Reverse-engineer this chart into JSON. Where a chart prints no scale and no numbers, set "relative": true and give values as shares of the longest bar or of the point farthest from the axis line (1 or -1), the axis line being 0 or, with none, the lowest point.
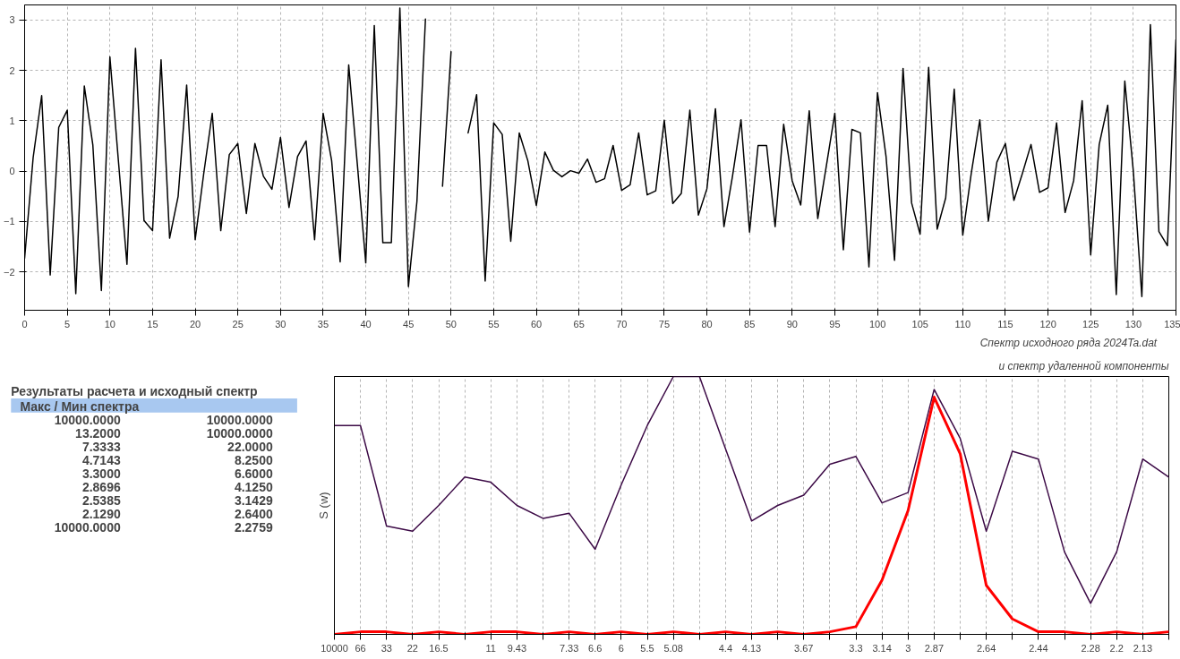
{
  "chart_data": [
    {
      "type": "line",
      "x": [
        0,
        1,
        2,
        3,
        4,
        5,
        6,
        7,
        8,
        9,
        10,
        11,
        12,
        13,
        14,
        15,
        16,
        17,
        18,
        19,
        20,
        21,
        22,
        23,
        24,
        25,
        26,
        27,
        28,
        29,
        30,
        31,
        32,
        33,
        34,
        35,
        36,
        37,
        38,
        39,
        40,
        41,
        42,
        43,
        44,
        45,
        46,
        47,
        48,
        49,
        50,
        51,
        52,
        53,
        54,
        55,
        56,
        57,
        58,
        59,
        60,
        61,
        62,
        63,
        64,
        65,
        66,
        67,
        68,
        69,
        70,
        71,
        72,
        73,
        74,
        75,
        76,
        77,
        78,
        79,
        80,
        81,
        82,
        83,
        84,
        85,
        86,
        87,
        88,
        89,
        90,
        91,
        92,
        93,
        94,
        95,
        96,
        97,
        98,
        99,
        100,
        101,
        102,
        103,
        104,
        105,
        106,
        107,
        108,
        109,
        110,
        111,
        112,
        113,
        114,
        115,
        116,
        117,
        118,
        119,
        120,
        121,
        122,
        123,
        124,
        125,
        126,
        127,
        128,
        129,
        130,
        131,
        132,
        133,
        134,
        135
      ],
      "series": [
        {
          "color": "#000000",
          "values": [
            -1.73,
            0.27,
            1.5,
            -2.06,
            0.87,
            1.21,
            -2.43,
            1.69,
            0.52,
            -2.37,
            2.27,
            0.2,
            -1.85,
            2.44,
            -0.98,
            -1.18,
            2.21,
            -1.33,
            -0.5,
            1.71,
            -1.36,
            -0.05,
            1.15,
            -1.18,
            0.33,
            0.55,
            -0.84,
            0.55,
            -0.1,
            -0.36,
            0.67,
            -0.72,
            0.29,
            0.6,
            -1.36,
            1.15,
            0.21,
            -1.8,
            2.11,
            0.16,
            -1.82,
            2.89,
            -1.42,
            -1.42,
            3.24,
            -2.29,
            -0.6,
            3.02,
            null,
            -0.3,
            2.37,
            null,
            0.76,
            1.52,
            -2.18,
            0.96,
            0.73,
            -1.39,
            0.76,
            0.21,
            -0.68,
            0.38,
            0.02,
            -0.11,
            0.01,
            -0.04,
            0.24,
            -0.22,
            -0.15,
            0.51,
            -0.38,
            -0.27,
            0.76,
            -0.47,
            -0.39,
            1.01,
            -0.64,
            -0.44,
            1.21,
            -0.87,
            -0.35,
            1.24,
            -1.1,
            -0.1,
            1.02,
            -1.21,
            0.51,
            0.51,
            -1.1,
            0.93,
            -0.19,
            -0.67,
            1.2,
            -0.94,
            0.1,
            1.15,
            -1.56,
            0.83,
            0.76,
            -1.9,
            1.56,
            0.3,
            -1.77,
            2.04,
            -0.63,
            -1.25,
            2.06,
            -1.15,
            -0.53,
            1.63,
            -1.27,
            -0.04,
            1.02,
            -0.99,
            0.18,
            0.55,
            -0.58,
            -0.04,
            0.53,
            -0.42,
            -0.33,
            0.96,
            -0.82,
            -0.19,
            1.4,
            -1.66,
            0.53,
            1.31,
            -2.45,
            1.79,
            0.0,
            -2.49,
            2.91,
            -1.2,
            -1.48,
            2.61
          ]
        }
      ],
      "xlim": [
        0,
        135
      ],
      "ylim": [
        -2.76,
        3.3
      ],
      "xticks": [
        0,
        5,
        10,
        15,
        20,
        25,
        30,
        35,
        40,
        45,
        50,
        55,
        60,
        65,
        70,
        75,
        80,
        85,
        90,
        95,
        100,
        105,
        110,
        115,
        120,
        125,
        130,
        135
      ],
      "yticks": [
        -2,
        -1,
        0,
        1,
        2,
        3
      ],
      "grid": true
    },
    {
      "type": "other",
      "title": "Результаты расчета и исходный спектр",
      "subtitle": "Макс / Мин  спектра",
      "annotations": [
        "10000.0000",
        "13.2000",
        "7.3333",
        "4.7143",
        "3.3000",
        "2.8696",
        "2.5385",
        "2.1290",
        "10000.0000"
      ]
    },
    {
      "type": "other",
      "annotations": [
        "10000.0000",
        "10000.0000",
        "22.0000",
        "8.2500",
        "6.6000",
        "4.1250",
        "3.1429",
        "2.6400",
        "2.2759"
      ]
    },
    {
      "type": "line",
      "relative": true,
      "title": "Спектр исходного ряда     2024Ta.dat",
      "subtitle": "и спектр удаленной компоненты",
      "ylabel": "S (w)",
      "categories": [
        "10000",
        "66",
        "33",
        "22",
        "16.5",
        null,
        "11",
        "9.43",
        null,
        "7.33",
        "6.6",
        "6",
        "5.5",
        "5.08",
        null,
        "4.4",
        "4.13",
        null,
        "3.67",
        null,
        "3.3",
        "3.14",
        "3",
        "2.87",
        null,
        "2.64",
        null,
        "2.44",
        null,
        "2.28",
        "2.2",
        "2.13",
        null
      ],
      "series": [
        {
          "color": "#3c0a46",
          "values": [
            0.81,
            0.81,
            0.42,
            0.4,
            0.5,
            0.61,
            0.59,
            0.5,
            0.45,
            0.47,
            0.33,
            0.58,
            0.81,
            1,
            1,
            0.72,
            0.44,
            0.5,
            0.54,
            0.66,
            0.69,
            0.51,
            0.55,
            0.95,
            0.76,
            0.4,
            0.71,
            0.68,
            0.32,
            0.12,
            0.32,
            0.68,
            0.61
          ]
        },
        {
          "color": "#ff0000",
          "values": [
            0,
            0.01,
            0.01,
            0,
            0.01,
            0,
            0.01,
            0.01,
            0,
            0.01,
            0,
            0.01,
            0,
            0.01,
            0,
            0.01,
            0,
            0.01,
            0,
            0.01,
            0.03,
            0.21,
            0.48,
            0.92,
            0.7,
            0.19,
            0.06,
            0.01,
            0.01,
            0,
            0.01,
            0,
            0.01
          ]
        }
      ],
      "grid": "x"
    }
  ]
}
